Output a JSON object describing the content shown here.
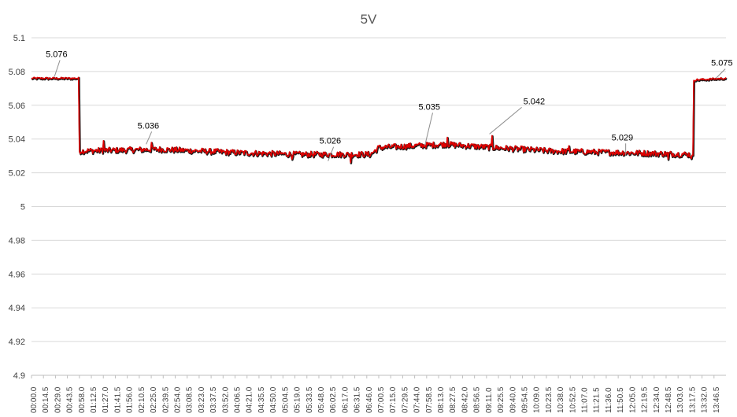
{
  "chart_data": {
    "type": "line",
    "title": "5V",
    "xlabel": "",
    "ylabel": "",
    "ylim": [
      4.9,
      5.1
    ],
    "y_ticks": [
      "4.9",
      "4.92",
      "4.94",
      "4.96",
      "4.98",
      "5",
      "5.02",
      "5.04",
      "5.06",
      "5.08",
      "5.1"
    ],
    "x_tick_labels": [
      "00:00.0",
      "00:14.5",
      "00:29.0",
      "00:43.5",
      "00:58.0",
      "01:12.5",
      "01:27.0",
      "01:41.5",
      "01:56.0",
      "02:10.5",
      "02:25.0",
      "02:39.5",
      "02:54.0",
      "03:08.5",
      "03:23.0",
      "03:37.5",
      "03:52.0",
      "04:06.5",
      "04:21.0",
      "04:35.5",
      "04:50.0",
      "05:04.5",
      "05:19.0",
      "05:33.5",
      "05:48.0",
      "06:02.5",
      "06:17.0",
      "06:31.5",
      "06:46.0",
      "07:00.5",
      "07:15.0",
      "07:29.5",
      "07:44.0",
      "07:58.5",
      "08:13.0",
      "08:27.5",
      "08:42.0",
      "08:56.5",
      "09:11.0",
      "09:25.5",
      "09:40.0",
      "09:54.5",
      "10:09.0",
      "10:23.5",
      "10:38.0",
      "10:52.5",
      "11:07.0",
      "11:21.5",
      "11:36.0",
      "11:50.5",
      "12:05.0",
      "12:19.5",
      "12:34.0",
      "12:48.5",
      "13:03.0",
      "13:17.5",
      "13:32.0",
      "13:46.5"
    ],
    "x_range_seconds": [
      0,
      840
    ],
    "grid": true,
    "line_color": "#e00000",
    "line_shadow_color": "#1a1a1a",
    "series": [
      {
        "name": "5V",
        "points": [
          [
            0,
            5.076
          ],
          [
            57,
            5.076
          ],
          [
            58,
            5.033
          ],
          [
            155,
            5.034
          ],
          [
            250,
            5.032
          ],
          [
            320,
            5.031
          ],
          [
            375,
            5.031
          ],
          [
            410,
            5.031
          ],
          [
            420,
            5.035
          ],
          [
            500,
            5.037
          ],
          [
            560,
            5.035
          ],
          [
            630,
            5.033
          ],
          [
            720,
            5.032
          ],
          [
            795,
            5.031
          ],
          [
            800,
            5.029
          ],
          [
            801,
            5.075
          ],
          [
            840,
            5.076
          ]
        ],
        "spikes": [
          [
            87,
            5.039
          ],
          [
            145,
            5.038
          ],
          [
            315,
            5.028
          ],
          [
            386,
            5.026
          ],
          [
            503,
            5.041
          ],
          [
            557,
            5.042
          ],
          [
            650,
            5.036
          ],
          [
            770,
            5.028
          ]
        ]
      }
    ],
    "annotations": [
      {
        "text": "5.076",
        "x": 22,
        "y": 5.076
      },
      {
        "text": "5.036",
        "x": 133,
        "y": 5.036
      },
      {
        "text": "5.026",
        "x": 353,
        "y": 5.026
      },
      {
        "text": "5.035",
        "x": 470,
        "y": 5.035
      },
      {
        "text": "5.042",
        "x": 552,
        "y": 5.042
      },
      {
        "text": "5.029",
        "x": 713,
        "y": 5.029
      },
      {
        "text": "5.075",
        "x": 822,
        "y": 5.075
      }
    ]
  }
}
